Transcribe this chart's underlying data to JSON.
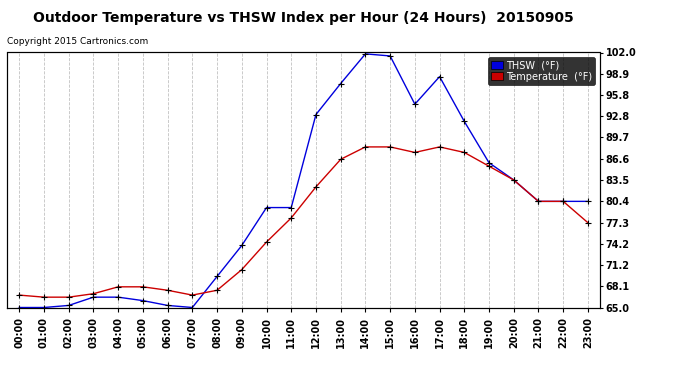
{
  "title": "Outdoor Temperature vs THSW Index per Hour (24 Hours)  20150905",
  "copyright": "Copyright 2015 Cartronics.com",
  "background_color": "#ffffff",
  "plot_background": "#ffffff",
  "grid_color": "#bbbbbb",
  "thsw_color": "#0000dd",
  "temp_color": "#cc0000",
  "hours": [
    "00:00",
    "01:00",
    "02:00",
    "03:00",
    "04:00",
    "05:00",
    "06:00",
    "07:00",
    "08:00",
    "09:00",
    "10:00",
    "11:00",
    "12:00",
    "13:00",
    "14:00",
    "15:00",
    "16:00",
    "17:00",
    "18:00",
    "19:00",
    "20:00",
    "21:00",
    "22:00",
    "23:00"
  ],
  "thsw": [
    65.0,
    65.0,
    65.3,
    66.5,
    66.5,
    66.0,
    65.3,
    65.0,
    69.5,
    74.0,
    79.5,
    79.5,
    93.0,
    97.5,
    101.8,
    101.5,
    94.5,
    98.5,
    92.0,
    86.0,
    83.5,
    80.4,
    80.4,
    80.4
  ],
  "temp": [
    66.8,
    66.5,
    66.5,
    67.0,
    68.0,
    68.0,
    67.5,
    66.8,
    67.5,
    70.5,
    74.5,
    78.0,
    82.5,
    86.5,
    88.3,
    88.3,
    87.5,
    88.3,
    87.5,
    85.5,
    83.5,
    80.4,
    80.4,
    77.3
  ],
  "ylim_min": 65.0,
  "ylim_max": 102.0,
  "yticks": [
    65.0,
    68.1,
    71.2,
    74.2,
    77.3,
    80.4,
    83.5,
    86.6,
    89.7,
    92.8,
    95.8,
    98.9,
    102.0
  ],
  "legend_thsw_label": "THSW  (°F)",
  "legend_temp_label": "Temperature  (°F)",
  "title_fontsize": 10,
  "tick_fontsize": 7,
  "ytick_fontsize": 7
}
